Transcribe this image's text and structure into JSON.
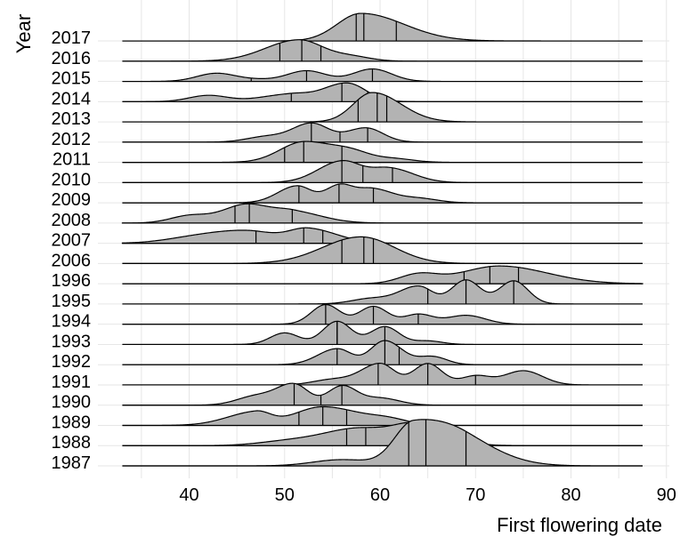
{
  "chart_data": {
    "type": "ridgeline",
    "xlabel": "First flowering date",
    "ylabel": "Year",
    "xlim": [
      31,
      91
    ],
    "xticks": [
      40,
      50,
      60,
      70,
      80,
      90
    ],
    "grid": true,
    "fill_color": "#b3b3b3",
    "series": [
      {
        "name": "1987",
        "range": [
          33,
          87.5
        ],
        "quantiles": [
          63,
          64.8,
          69
        ],
        "peaks": [
          [
            63.5,
            2.4,
            2.0,
            4.5
          ],
          [
            69,
            0.8,
            3,
            4
          ],
          [
            56,
            0.35,
            3,
            3
          ]
        ]
      },
      {
        "name": "1988",
        "range": [
          33,
          87.5
        ],
        "quantiles": [
          56.5,
          58.5,
          63.5
        ],
        "peaks": [
          [
            58,
            1.0,
            4,
            5
          ],
          [
            63.8,
            0.75,
            2,
            3
          ],
          [
            50,
            0.2,
            3,
            3
          ]
        ]
      },
      {
        "name": "1989",
        "range": [
          33,
          87.5
        ],
        "quantiles": [
          51.5,
          54,
          56.5
        ],
        "peaks": [
          [
            47,
            0.75,
            3,
            1.5
          ],
          [
            54,
            1.05,
            3,
            4
          ],
          [
            61,
            0.25,
            2,
            2
          ]
        ]
      },
      {
        "name": "1990",
        "range": [
          33,
          87.5
        ],
        "quantiles": [
          51,
          53.8,
          56
        ],
        "peaks": [
          [
            51,
            1.15,
            1.8,
            1.5
          ],
          [
            56,
            1.05,
            1.5,
            1.5
          ],
          [
            47,
            0.5,
            2,
            2
          ],
          [
            60,
            0.4,
            2,
            2
          ]
        ]
      },
      {
        "name": "1991",
        "range": [
          33,
          87.5
        ],
        "quantiles": [
          59.8,
          65,
          70
        ],
        "peaks": [
          [
            60,
            1.2,
            2,
            1.5
          ],
          [
            65,
            1.2,
            1.5,
            1.5
          ],
          [
            70,
            0.5,
            1.5,
            1.5
          ],
          [
            75,
            0.8,
            2,
            2
          ],
          [
            55,
            0.3,
            2,
            2
          ]
        ]
      },
      {
        "name": "1992",
        "range": [
          33,
          87.5
        ],
        "quantiles": [
          55.5,
          60.5,
          62
        ],
        "peaks": [
          [
            55.5,
            0.9,
            2,
            1.5
          ],
          [
            60.5,
            1.35,
            1.5,
            1.8
          ],
          [
            65.5,
            0.45,
            1.5,
            1.5
          ]
        ]
      },
      {
        "name": "1993",
        "range": [
          33,
          87.5
        ],
        "quantiles": [
          55.5,
          55.5,
          60.5
        ],
        "peaks": [
          [
            50,
            0.65,
            1.5,
            1.5
          ],
          [
            55.5,
            1.3,
            1.5,
            1.5
          ],
          [
            60.5,
            1.0,
            1.5,
            1.5
          ],
          [
            65,
            0.2,
            1.5,
            1.5
          ]
        ]
      },
      {
        "name": "1994",
        "range": [
          33,
          87.5
        ],
        "quantiles": [
          54.3,
          59.3,
          64
        ],
        "peaks": [
          [
            54.3,
            1.1,
            1.5,
            1.5
          ],
          [
            59.3,
            1.0,
            1.5,
            1.5
          ],
          [
            64,
            0.55,
            1.5,
            1.5
          ],
          [
            69,
            0.5,
            2,
            2
          ]
        ]
      },
      {
        "name": "1995",
        "range": [
          33,
          87.5
        ],
        "quantiles": [
          65,
          69,
          74
        ],
        "peaks": [
          [
            64,
            1.0,
            2,
            1.5
          ],
          [
            69,
            1.35,
            1.5,
            1.5
          ],
          [
            74,
            1.3,
            1.5,
            1.5
          ],
          [
            59,
            0.3,
            2,
            2
          ]
        ]
      },
      {
        "name": "1996",
        "range": [
          33,
          87.5
        ],
        "quantiles": [
          68.8,
          71.5,
          74.5
        ],
        "peaks": [
          [
            64,
            0.5,
            2,
            2
          ],
          [
            72.5,
            1.0,
            4,
            5
          ]
        ]
      },
      {
        "name": "2006",
        "range": [
          33,
          87.5
        ],
        "quantiles": [
          56,
          58.3,
          59.3
        ],
        "peaks": [
          [
            58,
            1.5,
            4,
            3.5
          ]
        ]
      },
      {
        "name": "2007",
        "range": [
          33,
          87.5
        ],
        "quantiles": [
          47,
          52,
          54
        ],
        "peaks": [
          [
            46,
            0.7,
            4,
            3
          ],
          [
            52.5,
            0.8,
            2,
            3
          ],
          [
            40,
            0.2,
            3,
            3
          ]
        ]
      },
      {
        "name": "2008",
        "range": [
          33,
          87.5
        ],
        "quantiles": [
          44.8,
          46.3,
          50.8
        ],
        "peaks": [
          [
            40,
            0.4,
            2,
            2
          ],
          [
            46,
            1.05,
            2.5,
            2.5
          ],
          [
            51,
            0.6,
            2,
            3
          ]
        ]
      },
      {
        "name": "2009",
        "range": [
          33,
          87.5
        ],
        "quantiles": [
          51.5,
          55.7,
          59.3
        ],
        "peaks": [
          [
            51.3,
            0.95,
            2,
            1.5
          ],
          [
            55.8,
            1.0,
            1.5,
            1.5
          ],
          [
            59.3,
            0.75,
            1.5,
            2
          ],
          [
            64,
            0.25,
            2,
            2
          ]
        ]
      },
      {
        "name": "2010",
        "range": [
          33,
          87.5
        ],
        "quantiles": [
          56,
          58.2,
          61.3
        ],
        "peaks": [
          [
            56,
            1.2,
            2.5,
            2
          ],
          [
            61,
            0.8,
            2,
            2.5
          ]
        ]
      },
      {
        "name": "2011",
        "range": [
          33,
          87.5
        ],
        "quantiles": [
          50,
          52,
          56
        ],
        "peaks": [
          [
            52,
            1.15,
            2.5,
            3
          ],
          [
            57,
            0.5,
            2,
            2
          ],
          [
            61.5,
            0.2,
            2,
            2
          ]
        ]
      },
      {
        "name": "2012",
        "range": [
          33,
          87.5
        ],
        "quantiles": [
          52.8,
          55.8,
          58.7
        ],
        "peaks": [
          [
            52.8,
            1.05,
            2,
            1.8
          ],
          [
            58.5,
            0.8,
            2,
            1.8
          ],
          [
            48,
            0.3,
            2,
            2
          ]
        ]
      },
      {
        "name": "2013",
        "range": [
          33,
          87.5
        ],
        "quantiles": [
          57.7,
          59.7,
          60.7
        ],
        "peaks": [
          [
            59.2,
            1.65,
            2,
            3
          ]
        ]
      },
      {
        "name": "2014",
        "range": [
          33,
          87.5
        ],
        "quantiles": [
          50.7,
          56,
          58.7
        ],
        "peaks": [
          [
            42,
            0.35,
            2,
            2
          ],
          [
            50.5,
            0.4,
            3,
            2
          ],
          [
            56.5,
            1.05,
            2.5,
            2
          ]
        ]
      },
      {
        "name": "2015",
        "range": [
          33,
          87.5
        ],
        "quantiles": [
          46.5,
          52.3,
          59.2
        ],
        "peaks": [
          [
            42.8,
            0.45,
            2,
            2
          ],
          [
            52.3,
            0.6,
            2,
            2
          ],
          [
            59.2,
            0.7,
            2,
            2
          ],
          [
            47,
            0.1,
            2,
            2
          ]
        ]
      },
      {
        "name": "2016",
        "range": [
          33,
          87.5
        ],
        "quantiles": [
          49.5,
          51.8,
          53.8
        ],
        "peaks": [
          [
            51.5,
            1.2,
            3.5,
            2.5
          ],
          [
            57,
            0.25,
            2,
            2
          ]
        ]
      },
      {
        "name": "2017",
        "range": [
          33,
          87.5
        ],
        "quantiles": [
          57.5,
          58.3,
          61.7
        ],
        "peaks": [
          [
            58,
            1.55,
            2.5,
            4.5
          ]
        ]
      }
    ]
  }
}
